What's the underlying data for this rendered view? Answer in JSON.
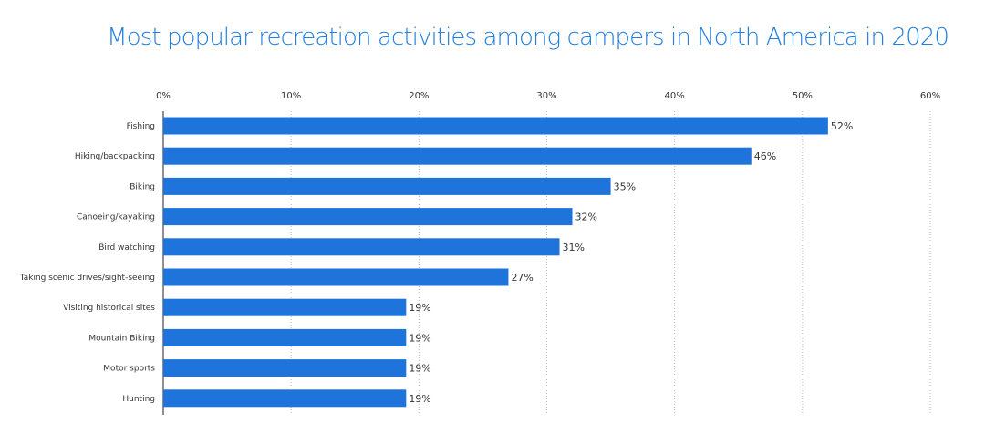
{
  "chart_data": {
    "type": "bar",
    "orientation": "horizontal",
    "title": "Most popular recreation activities among campers in North America in 2020",
    "categories": [
      "Fishing",
      "Hiking/backpacking",
      "Biking",
      "Canoeing/kayaking",
      "Bird watching",
      "Taking scenic drives/sight-seeing",
      "Visiting historical sites",
      "Mountain Biking",
      "Motor sports",
      "Hunting"
    ],
    "values": [
      52,
      46,
      35,
      32,
      31,
      27,
      19,
      19,
      19,
      19
    ],
    "value_labels": [
      "52%",
      "46%",
      "35%",
      "32%",
      "31%",
      "27%",
      "19%",
      "19%",
      "19%",
      "19%"
    ],
    "xticks": [
      0,
      10,
      20,
      30,
      40,
      50,
      60
    ],
    "xtick_labels": [
      "0%",
      "10%",
      "20%",
      "30%",
      "40%",
      "50%",
      "60%"
    ],
    "xlim": [
      0,
      60
    ],
    "xlabel": "",
    "ylabel": "",
    "axis_position": "top",
    "grid": true,
    "bar_color": "#1f74dc",
    "title_color": "#1f7ee2"
  }
}
